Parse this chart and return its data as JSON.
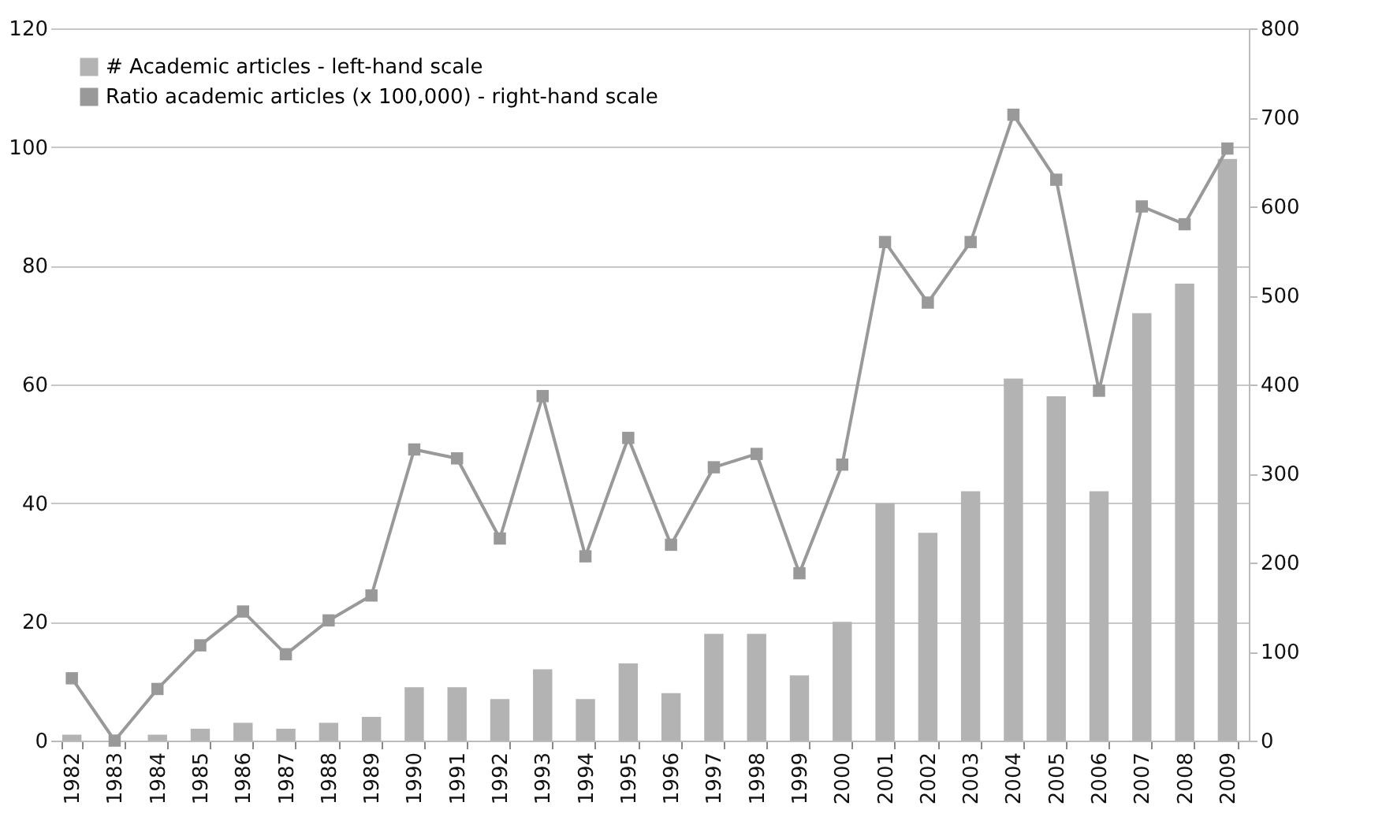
{
  "chart_data": {
    "type": "bar",
    "categories": [
      "1982",
      "1983",
      "1984",
      "1985",
      "1986",
      "1987",
      "1988",
      "1989",
      "1990",
      "1991",
      "1992",
      "1993",
      "1994",
      "1995",
      "1996",
      "1997",
      "1998",
      "1999",
      "2000",
      "2001",
      "2002",
      "2003",
      "2004",
      "2005",
      "2006",
      "2007",
      "2008",
      "2009"
    ],
    "series": [
      {
        "name": "# Academic articles - left-hand scale",
        "color": "#b3b3b3",
        "values": [
          1,
          0,
          1,
          2,
          3,
          2,
          3,
          4,
          9,
          9,
          7,
          12,
          7,
          13,
          8,
          18,
          18,
          11,
          20,
          40,
          35,
          42,
          61,
          58,
          42,
          72,
          77,
          98
        ]
      },
      {
        "name": "Ratio academic articles (x 100,000) - right-hand scale",
        "type": "line",
        "axis": "y2",
        "color": "#999999",
        "marker": "square",
        "values": [
          70,
          0,
          58,
          107,
          145,
          97,
          135,
          163,
          327,
          317,
          227,
          387,
          207,
          340,
          220,
          307,
          322,
          188,
          310,
          560,
          492,
          560,
          703,
          630,
          393,
          600,
          580,
          665
        ]
      }
    ],
    "ylim": [
      0,
      120
    ],
    "yticks": [
      0,
      20,
      40,
      60,
      80,
      100,
      120
    ],
    "y2lim": [
      0,
      800
    ],
    "y2ticks": [
      0,
      100,
      200,
      300,
      400,
      500,
      600,
      700,
      800
    ],
    "grid": "y",
    "legend": "top left"
  }
}
